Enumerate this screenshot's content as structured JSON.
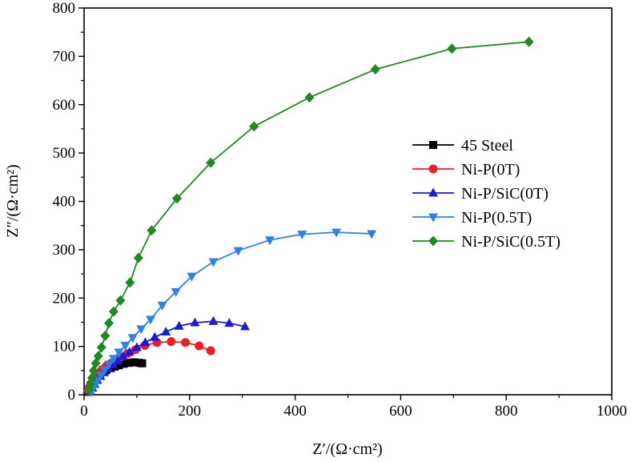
{
  "chart_data": {
    "type": "line",
    "title": "",
    "xlabel": "Z′/(Ω·cm²)",
    "ylabel": "Z″/(Ω·cm²)",
    "xlim": [
      0,
      1000
    ],
    "ylim": [
      0,
      800
    ],
    "x_ticks": [
      "0",
      "200",
      "400",
      "600",
      "800",
      "1000"
    ],
    "y_ticks": [
      "0",
      "100",
      "200",
      "300",
      "400",
      "500",
      "600",
      "700",
      "800"
    ],
    "legend_position": "center-right",
    "series": [
      {
        "name": "45 Steel",
        "color": "#000000",
        "marker": "square",
        "x": [
          8,
          10,
          13,
          16,
          20,
          25,
          30,
          36,
          42,
          50,
          58,
          66,
          75,
          85,
          95,
          105,
          110
        ],
        "y": [
          6,
          12,
          20,
          27,
          33,
          38,
          43,
          47,
          51,
          55,
          58,
          61,
          64,
          66,
          67,
          66,
          65
        ]
      },
      {
        "name": "Ni-P(0T)",
        "color": "#ee1c25",
        "marker": "circle",
        "x": [
          8,
          12,
          16,
          21,
          27,
          34,
          42,
          51,
          60,
          70,
          82,
          97,
          115,
          138,
          165,
          192,
          218,
          240
        ],
        "y": [
          8,
          18,
          28,
          37,
          45,
          52,
          59,
          65,
          71,
          78,
          85,
          93,
          102,
          108,
          110,
          108,
          101,
          91
        ]
      },
      {
        "name": "Ni-P/SiC(0T)",
        "color": "#1a1ad8",
        "marker": "triangle-up",
        "x": [
          12,
          16,
          20,
          25,
          31,
          38,
          46,
          55,
          64,
          74,
          86,
          100,
          116,
          134,
          155,
          180,
          210,
          245,
          275,
          305
        ],
        "y": [
          6,
          14,
          22,
          30,
          38,
          46,
          54,
          62,
          70,
          79,
          88,
          98,
          108,
          119,
          130,
          142,
          149,
          152,
          148,
          141
        ]
      },
      {
        "name": "Ni-P(0.5T)",
        "color": "#2b83e8",
        "marker": "triangle-down",
        "x": [
          14,
          17,
          21,
          26,
          32,
          39,
          47,
          56,
          66,
          78,
          92,
          108,
          126,
          148,
          174,
          204,
          245,
          292,
          352,
          413,
          478,
          545
        ],
        "y": [
          6,
          13,
          21,
          30,
          40,
          51,
          63,
          75,
          88,
          102,
          118,
          136,
          156,
          185,
          213,
          245,
          275,
          298,
          320,
          332,
          336,
          333
        ]
      },
      {
        "name": "Ni-P/SiC(0.5T)",
        "color": "#1e8a1e",
        "marker": "diamond",
        "x": [
          10,
          12,
          15,
          18,
          22,
          27,
          33,
          40,
          47,
          56,
          69,
          87,
          103,
          128,
          176,
          240,
          322,
          427,
          552,
          697,
          843
        ],
        "y": [
          10,
          22,
          35,
          50,
          65,
          80,
          98,
          122,
          148,
          172,
          195,
          232,
          283,
          340,
          406,
          480,
          555,
          615,
          673,
          716,
          730
        ]
      }
    ]
  }
}
